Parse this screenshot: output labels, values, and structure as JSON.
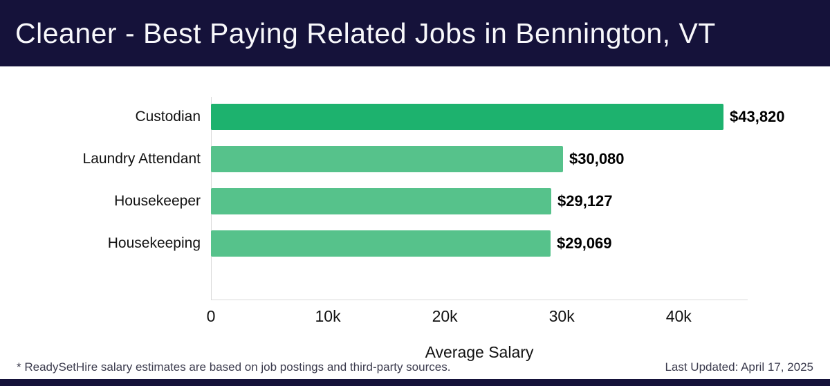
{
  "header": {
    "title": "Cleaner - Best Paying Related Jobs in Bennington, VT"
  },
  "chart_data": {
    "type": "bar",
    "orientation": "horizontal",
    "title": "Cleaner - Best Paying Related Jobs in Bennington, VT",
    "categories": [
      "Custodian",
      "Laundry Attendant",
      "Housekeeper",
      "Housekeeping"
    ],
    "values": [
      43820,
      30080,
      29127,
      29069
    ],
    "value_labels": [
      "$43,820",
      "$30,080",
      "$29,127",
      "$29,069"
    ],
    "bar_colors": [
      "#1db26e",
      "#56c28b",
      "#56c28b",
      "#56c28b"
    ],
    "xlabel": "Average Salary",
    "ylabel": "",
    "xlim": [
      0,
      45900
    ],
    "xticks": [
      {
        "value": 0,
        "label": "0"
      },
      {
        "value": 10000,
        "label": "10k"
      },
      {
        "value": 20000,
        "label": "20k"
      },
      {
        "value": 30000,
        "label": "30k"
      },
      {
        "value": 40000,
        "label": "40k"
      }
    ],
    "grid": false,
    "legend": "none"
  },
  "footer": {
    "note": "* ReadySetHire salary estimates are based on job postings and third-party sources.",
    "updated": "Last Updated: April 17, 2025"
  },
  "colors": {
    "header_bg": "#15123a",
    "bar_primary": "#1db26e",
    "bar_secondary": "#56c28b",
    "axis_line": "#d9d9d9"
  }
}
